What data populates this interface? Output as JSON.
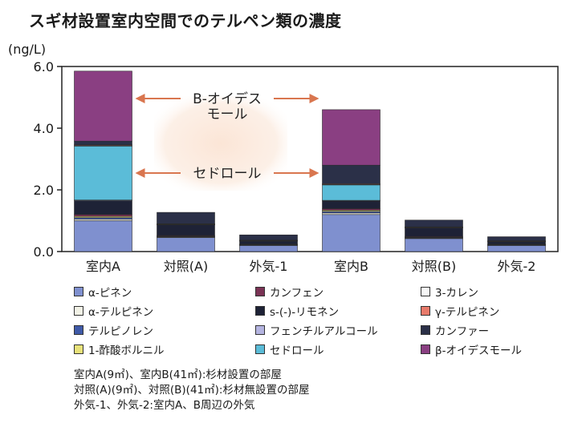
{
  "page_title": "スギ材設置室内空間でのテルペン類の濃度",
  "chart_data": {
    "type": "bar",
    "stacked": true,
    "ylabel": "(ng/L)",
    "ylim": [
      0,
      6.0
    ],
    "yticks": [
      "0.0",
      "2.0",
      "4.0",
      "6.0"
    ],
    "categories": [
      "室内A",
      "対照(A)",
      "外気-1",
      "室内B",
      "対照(B)",
      "外気-2"
    ],
    "series": [
      {
        "name": "α-ピネン",
        "color": "#7f90cf",
        "values": [
          1.0,
          0.45,
          0.2,
          1.2,
          0.42,
          0.2
        ]
      },
      {
        "name": "α-テルピネン",
        "color": "#f2f2e6",
        "values": [
          0.05,
          0.02,
          0.01,
          0.05,
          0.02,
          0.01
        ]
      },
      {
        "name": "テルピノレン",
        "color": "#3f5aa8",
        "values": [
          0.05,
          0.02,
          0.01,
          0.05,
          0.02,
          0.01
        ]
      },
      {
        "name": "1-酢酸ボルニル",
        "color": "#e8e27a",
        "values": [
          0.04,
          0.01,
          0.01,
          0.04,
          0.01,
          0.01
        ]
      },
      {
        "name": "カンフェン",
        "color": "#7a3355",
        "values": [
          0.06,
          0.02,
          0.01,
          0.05,
          0.02,
          0.01
        ]
      },
      {
        "name": "s-(-)-リモネン",
        "color": "#1e2236",
        "values": [
          0.45,
          0.35,
          0.1,
          0.25,
          0.28,
          0.08
        ]
      },
      {
        "name": "フェンチルアルコール",
        "color": "#b4b4e0",
        "values": [
          0.02,
          0.01,
          0.01,
          0.02,
          0.01,
          0.01
        ]
      },
      {
        "name": "セドロール",
        "color": "#5bbcd8",
        "values": [
          1.75,
          0.0,
          0.0,
          0.5,
          0.0,
          0.0
        ]
      },
      {
        "name": "3-カレン",
        "color": "#f7f7f7",
        "values": [
          0.02,
          0.01,
          0.01,
          0.02,
          0.01,
          0.01
        ]
      },
      {
        "name": "γ-テルピネン",
        "color": "#e87a6a",
        "values": [
          0.02,
          0.01,
          0.01,
          0.02,
          0.01,
          0.01
        ]
      },
      {
        "name": "カンファー",
        "color": "#2b3048",
        "values": [
          0.12,
          0.37,
          0.17,
          0.6,
          0.22,
          0.13
        ]
      },
      {
        "name": "β-オイデスモール",
        "color": "#8a3f82",
        "values": [
          2.27,
          0.0,
          0.0,
          1.8,
          0.0,
          0.0
        ]
      }
    ],
    "annotations": [
      {
        "lines": [
          "B-オイデス",
          "モール"
        ],
        "target": "β-オイデスモール"
      },
      {
        "lines": [
          "セドロール"
        ],
        "target": "セドロール"
      }
    ]
  },
  "legend_order": [
    0,
    4,
    8,
    1,
    5,
    9,
    2,
    6,
    10,
    3,
    7,
    11
  ],
  "notes": [
    "室内A(9㎡)、室内B(41㎡):杉材設置の部屋",
    "対照(A)(9㎡)、対照(B)(41㎡):杉材無設置の部屋",
    "外気-1、外気-2:室内A、B周辺の外気"
  ]
}
